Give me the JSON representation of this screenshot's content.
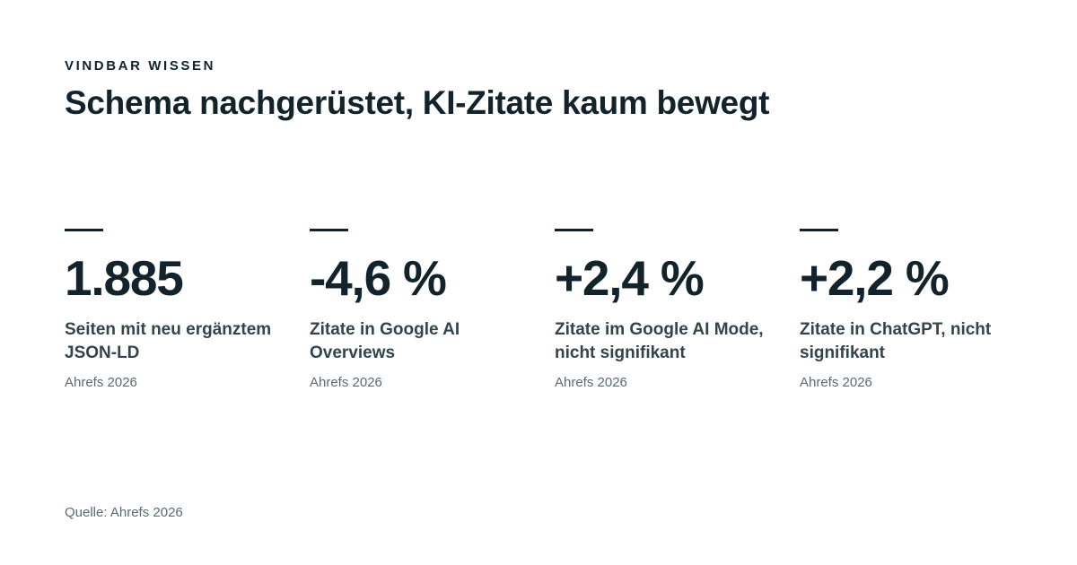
{
  "header": {
    "eyebrow": "VINDBAR WISSEN",
    "title": "Schema nachgerüstet, KI-Zitate kaum bewegt"
  },
  "stats": [
    {
      "value": "1.885",
      "label": "Seiten mit neu ergänztem JSON-LD",
      "source": "Ahrefs 2026"
    },
    {
      "value": "-4,6 %",
      "label": "Zitate in Google AI Overviews",
      "source": "Ahrefs 2026"
    },
    {
      "value": "+2,4 %",
      "label": "Zitate im Google AI Mode, nicht signifikant",
      "source": "Ahrefs 2026"
    },
    {
      "value": "+2,2 %",
      "label": "Zitate in ChatGPT, nicht signifikant",
      "source": "Ahrefs 2026"
    }
  ],
  "footer": {
    "source": "Quelle: Ahrefs 2026"
  },
  "colors": {
    "background": "#ffffff",
    "text_primary": "#13232c",
    "text_secondary": "#34444d",
    "text_muted": "#5d6a72"
  }
}
